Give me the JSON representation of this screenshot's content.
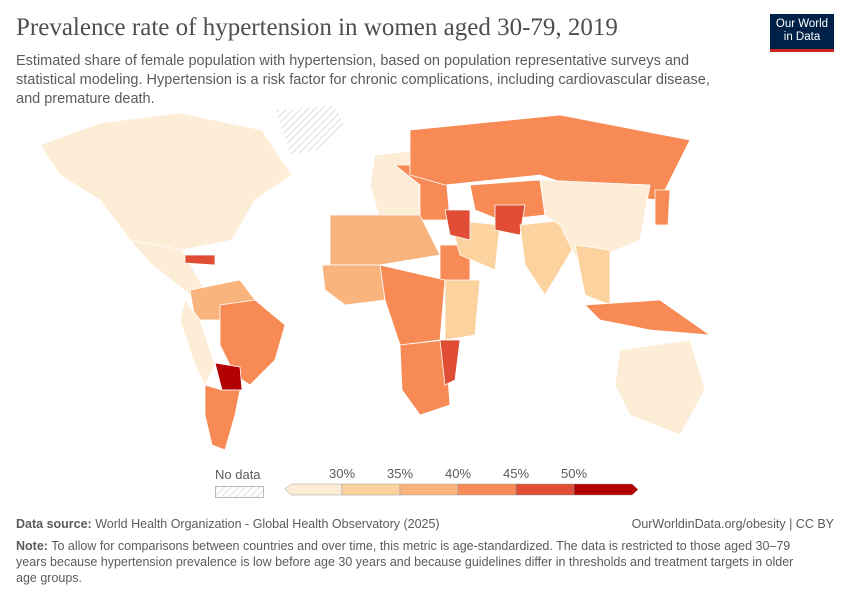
{
  "header": {
    "title": "Prevalence rate of hypertension in women aged 30-79, 2019",
    "subtitle": "Estimated share of female population with hypertension, based on population representative surveys and statistical modeling. Hypertension is a risk factor for chronic complications, including cardiovascular disease, and premature death.",
    "logo": "Our World in Data"
  },
  "legend": {
    "no_data": "No data",
    "ticks": [
      "30%",
      "35%",
      "40%",
      "45%",
      "50%"
    ],
    "colors": [
      "#fdecd6",
      "#fcd29f",
      "#f9b47e",
      "#f78a55",
      "#e04c34",
      "#b30000"
    ],
    "no_data_color": "#eeeeee"
  },
  "map": {
    "regions": [
      {
        "name": "North America",
        "bin": 0
      },
      {
        "name": "Greenland",
        "bin": -1
      },
      {
        "name": "Mexico and Central America",
        "bin": 0
      },
      {
        "name": "Caribbean",
        "bin": 4
      },
      {
        "name": "Northern South America",
        "bin": 2
      },
      {
        "name": "Brazil",
        "bin": 3
      },
      {
        "name": "Andes",
        "bin": 0
      },
      {
        "name": "Paraguay",
        "bin": 5
      },
      {
        "name": "Argentina",
        "bin": 3
      },
      {
        "name": "Western Europe",
        "bin": 0
      },
      {
        "name": "Eastern Europe",
        "bin": 3
      },
      {
        "name": "Russia",
        "bin": 3
      },
      {
        "name": "North Africa",
        "bin": 2
      },
      {
        "name": "Egypt",
        "bin": 3
      },
      {
        "name": "West Africa",
        "bin": 2
      },
      {
        "name": "Central Africa",
        "bin": 3
      },
      {
        "name": "East Africa",
        "bin": 1
      },
      {
        "name": "Southern Africa",
        "bin": 3
      },
      {
        "name": "Mozambique",
        "bin": 4
      },
      {
        "name": "Middle East",
        "bin": 1
      },
      {
        "name": "Iraq",
        "bin": 4
      },
      {
        "name": "Central Asia",
        "bin": 3
      },
      {
        "name": "Afghanistan",
        "bin": 4
      },
      {
        "name": "India",
        "bin": 1
      },
      {
        "name": "China",
        "bin": 0
      },
      {
        "name": "Southeast Asia",
        "bin": 1
      },
      {
        "name": "Indonesia",
        "bin": 3
      },
      {
        "name": "Australia",
        "bin": 0
      },
      {
        "name": "Japan",
        "bin": 3
      }
    ]
  },
  "footer": {
    "source_label": "Data source:",
    "source": "World Health Organization - Global Health Observatory (2025)",
    "link": "OurWorldinData.org/obesity | CC BY",
    "note_label": "Note:",
    "note": "To allow for comparisons between countries and over time, this metric is age-standardized. The data is restricted to those aged 30–79 years because hypertension prevalence is low before age 30 years and because guidelines differ in thresholds and treatment targets in older age groups."
  }
}
